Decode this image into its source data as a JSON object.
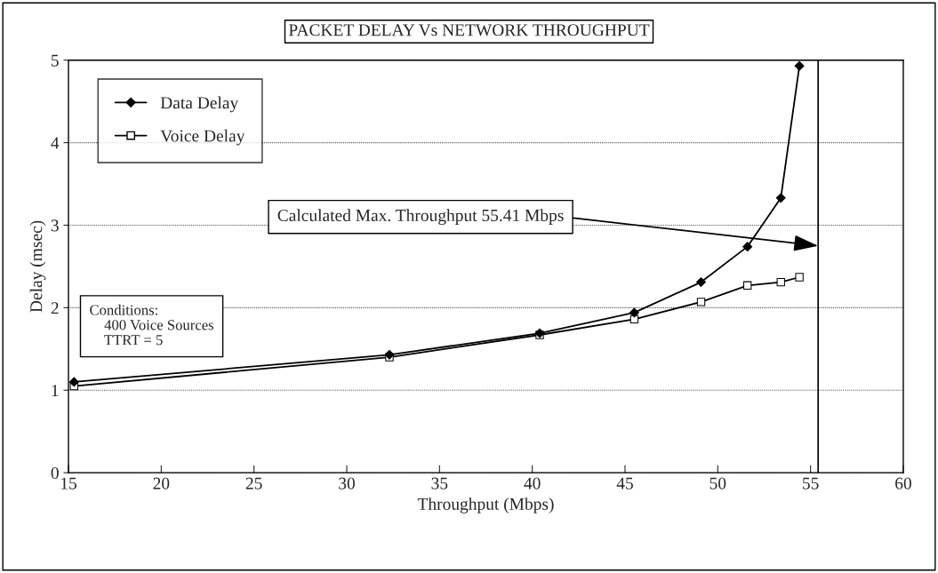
{
  "chart_data": {
    "type": "line",
    "title": "PACKET DELAY Vs NETWORK THROUGHPUT",
    "xlabel": "Throughput (Mbps)",
    "ylabel": "Delay (msec)",
    "x": [
      15.3,
      32.3,
      40.4,
      45.5,
      49.1,
      51.6,
      53.4,
      54.4
    ],
    "series": [
      {
        "name": "Data Delay",
        "color": "#000000",
        "marker": "diamond",
        "values": [
          1.1,
          1.43,
          1.69,
          1.94,
          2.31,
          2.74,
          3.33,
          4.93
        ]
      },
      {
        "name": "Voice Delay",
        "color": "#000000",
        "marker": "square",
        "values": [
          1.05,
          1.4,
          1.67,
          1.86,
          2.07,
          2.27,
          2.31,
          2.37
        ]
      }
    ],
    "xlim": [
      15,
      60
    ],
    "xticks": [
      15,
      20,
      25,
      30,
      35,
      40,
      45,
      50,
      55,
      60
    ],
    "ylim": [
      0,
      5
    ],
    "yticks": [
      0,
      1,
      2,
      3,
      4,
      5
    ],
    "grid": "y",
    "legend": "top left",
    "ref_lines": [
      {
        "axis": "x",
        "value": 55.41,
        "color": "#000000"
      }
    ],
    "annotations": [
      {
        "text": "Calculated Max. Throughput 55.41 Mbps",
        "x": 55.41,
        "y": 2.75
      },
      "Conditions:\n    400 Voice Sources\n    TTRT = 5"
    ]
  }
}
